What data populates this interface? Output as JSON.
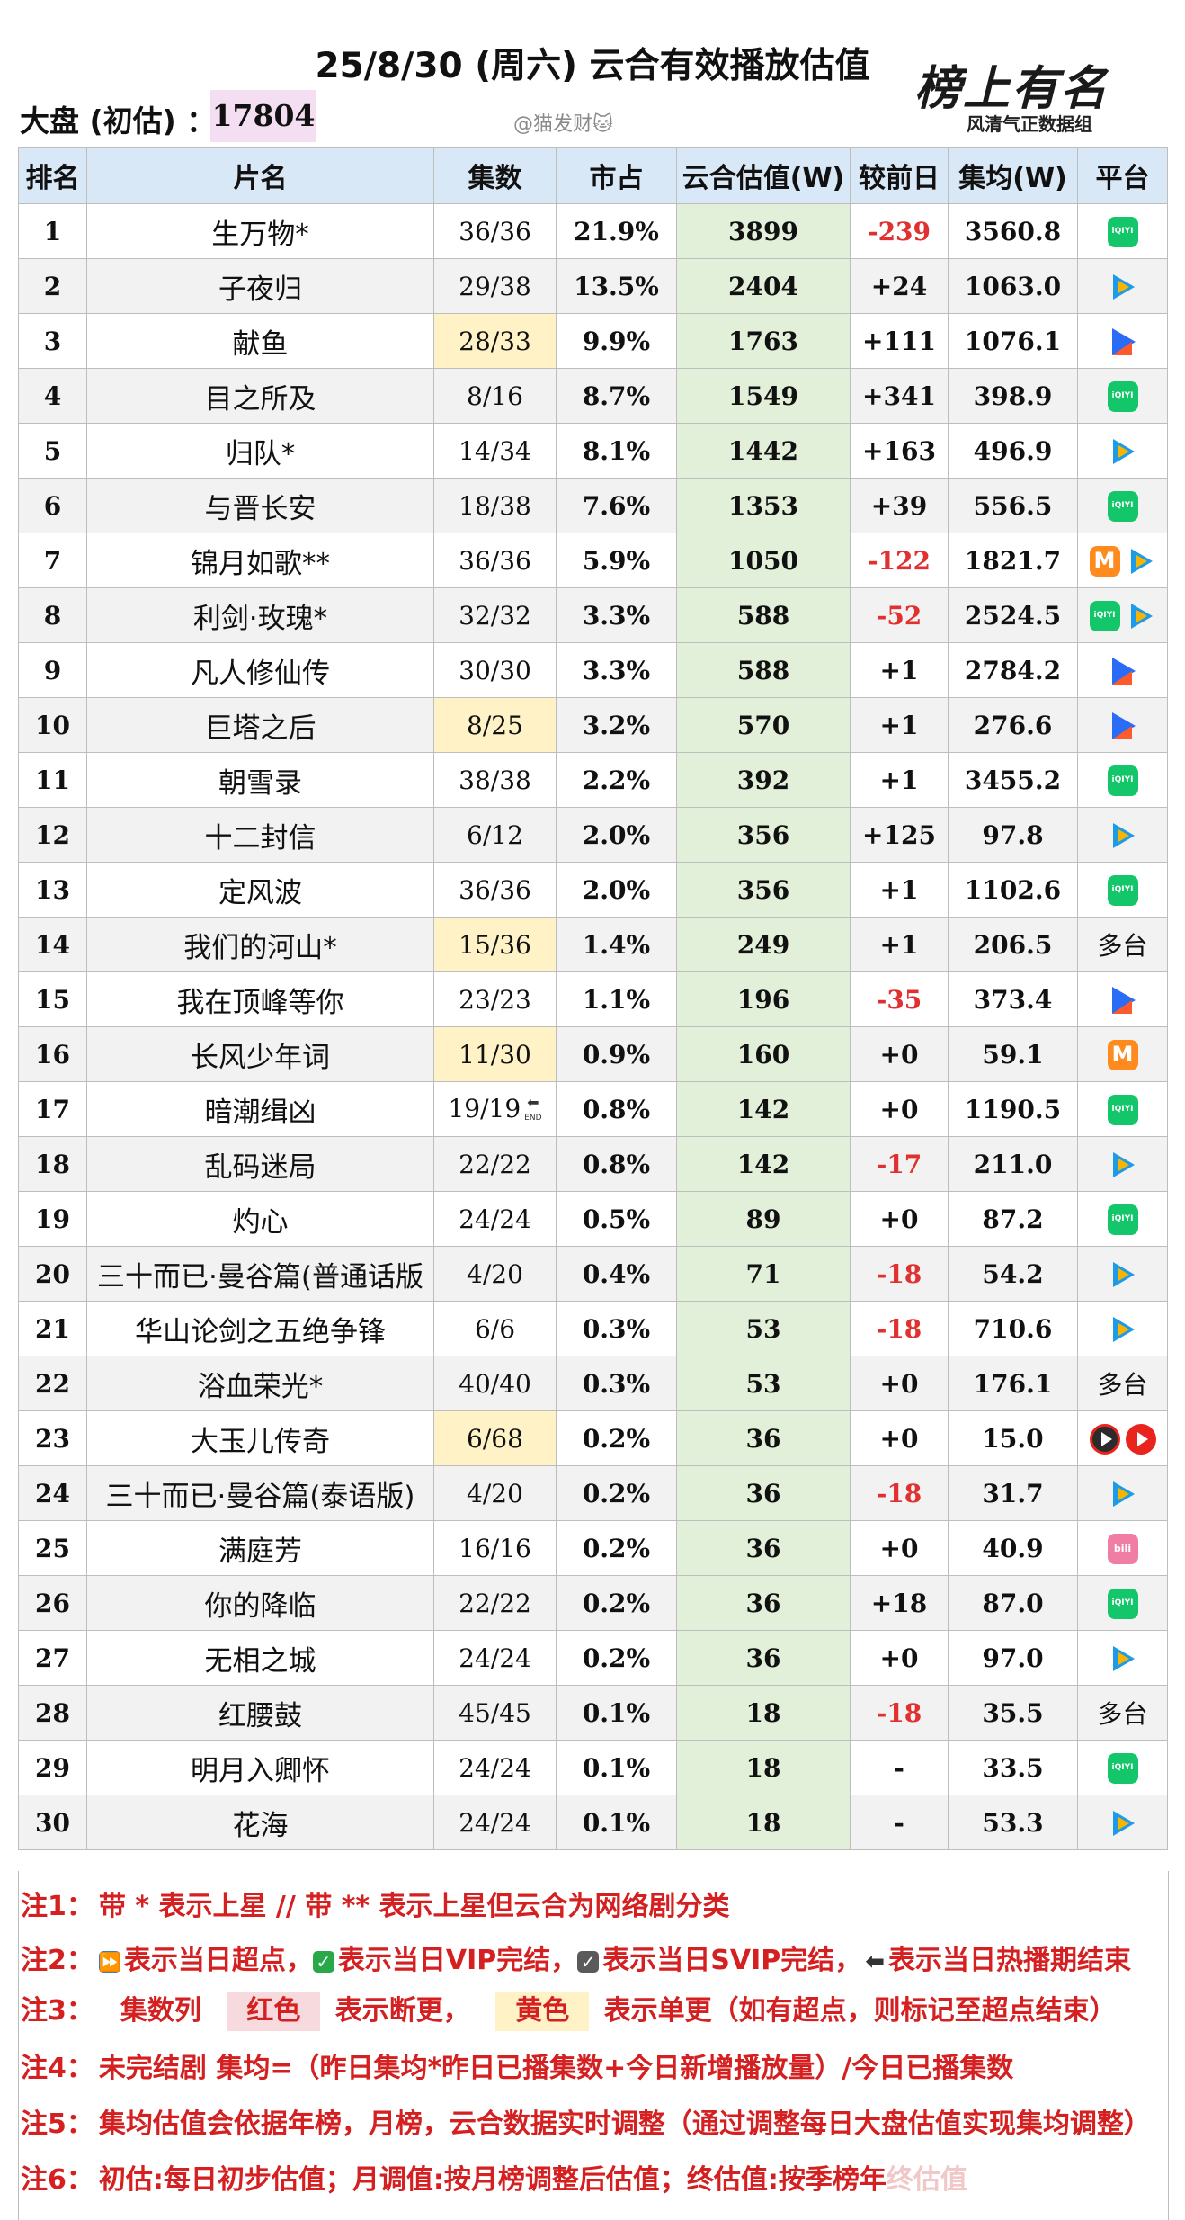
{
  "title": "25/8/30 (周六) 云合有效播放估值",
  "logo": {
    "text": "榜上有名",
    "subtitle": "风清气正数据组"
  },
  "dapan": {
    "label": "大盘 (初估) ：",
    "value": "17804"
  },
  "watermark": "@猫发财🐱",
  "headers": [
    "排名",
    "片名",
    "集数",
    "市占",
    "云合估值(W)",
    "较前日",
    "集均(W)",
    "平台"
  ],
  "rows": [
    {
      "rank": "1",
      "name": "生万物*",
      "eps": "36/36",
      "share": "21.9%",
      "value": "3899",
      "change": "-239",
      "avg": "3560.8",
      "platform": [
        "iqiyi"
      ],
      "hl": false
    },
    {
      "rank": "2",
      "name": "子夜归",
      "eps": "29/38",
      "share": "13.5%",
      "value": "2404",
      "change": "+24",
      "avg": "1063.0",
      "platform": [
        "tencent"
      ],
      "hl": false
    },
    {
      "rank": "3",
      "name": "献鱼",
      "eps": "28/33",
      "share": "9.9%",
      "value": "1763",
      "change": "+111",
      "avg": "1076.1",
      "platform": [
        "youku"
      ],
      "hl": true
    },
    {
      "rank": "4",
      "name": "目之所及",
      "eps": "8/16",
      "share": "8.7%",
      "value": "1549",
      "change": "+341",
      "avg": "398.9",
      "platform": [
        "iqiyi"
      ],
      "hl": false
    },
    {
      "rank": "5",
      "name": "归队*",
      "eps": "14/34",
      "share": "8.1%",
      "value": "1442",
      "change": "+163",
      "avg": "496.9",
      "platform": [
        "tencent"
      ],
      "hl": false
    },
    {
      "rank": "6",
      "name": "与晋长安",
      "eps": "18/38",
      "share": "7.6%",
      "value": "1353",
      "change": "+39",
      "avg": "556.5",
      "platform": [
        "iqiyi"
      ],
      "hl": false
    },
    {
      "rank": "7",
      "name": "锦月如歌**",
      "eps": "36/36",
      "share": "5.9%",
      "value": "1050",
      "change": "-122",
      "avg": "1821.7",
      "platform": [
        "mgtv",
        "tencent"
      ],
      "hl": false
    },
    {
      "rank": "8",
      "name": "利剑·玫瑰*",
      "eps": "32/32",
      "share": "3.3%",
      "value": "588",
      "change": "-52",
      "avg": "2524.5",
      "platform": [
        "iqiyi",
        "tencent"
      ],
      "hl": false
    },
    {
      "rank": "9",
      "name": "凡人修仙传",
      "eps": "30/30",
      "share": "3.3%",
      "value": "588",
      "change": "+1",
      "avg": "2784.2",
      "platform": [
        "youku"
      ],
      "hl": false
    },
    {
      "rank": "10",
      "name": "巨塔之后",
      "eps": "8/25",
      "share": "3.2%",
      "value": "570",
      "change": "+1",
      "avg": "276.6",
      "platform": [
        "youku"
      ],
      "hl": true
    },
    {
      "rank": "11",
      "name": "朝雪录",
      "eps": "38/38",
      "share": "2.2%",
      "value": "392",
      "change": "+1",
      "avg": "3455.2",
      "platform": [
        "iqiyi"
      ],
      "hl": false
    },
    {
      "rank": "12",
      "name": "十二封信",
      "eps": "6/12",
      "share": "2.0%",
      "value": "356",
      "change": "+125",
      "avg": "97.8",
      "platform": [
        "tencent"
      ],
      "hl": false
    },
    {
      "rank": "13",
      "name": "定风波",
      "eps": "36/36",
      "share": "2.0%",
      "value": "356",
      "change": "+1",
      "avg": "1102.6",
      "platform": [
        "iqiyi"
      ],
      "hl": false
    },
    {
      "rank": "14",
      "name": "我们的河山*",
      "eps": "15/36",
      "share": "1.4%",
      "value": "249",
      "change": "+1",
      "avg": "206.5",
      "platform": [
        "多台"
      ],
      "hl": true
    },
    {
      "rank": "15",
      "name": "我在顶峰等你",
      "eps": "23/23",
      "share": "1.1%",
      "value": "196",
      "change": "-35",
      "avg": "373.4",
      "platform": [
        "youku"
      ],
      "hl": false
    },
    {
      "rank": "16",
      "name": "长风少年词",
      "eps": "11/30",
      "share": "0.9%",
      "value": "160",
      "change": "+0",
      "avg": "59.1",
      "platform": [
        "mgtv"
      ],
      "hl": true
    },
    {
      "rank": "17",
      "name": "暗潮缉凶",
      "eps": "19/19",
      "share": "0.8%",
      "value": "142",
      "change": "+0",
      "avg": "1190.5",
      "platform": [
        "iqiyi"
      ],
      "hl": false,
      "end": "END"
    },
    {
      "rank": "18",
      "name": "乱码迷局",
      "eps": "22/22",
      "share": "0.8%",
      "value": "142",
      "change": "-17",
      "avg": "211.0",
      "platform": [
        "tencent"
      ],
      "hl": false
    },
    {
      "rank": "19",
      "name": "灼心",
      "eps": "24/24",
      "share": "0.5%",
      "value": "89",
      "change": "+0",
      "avg": "87.2",
      "platform": [
        "iqiyi"
      ],
      "hl": false
    },
    {
      "rank": "20",
      "name": "三十而已·曼谷篇(普通话版",
      "eps": "4/20",
      "share": "0.4%",
      "value": "71",
      "change": "-18",
      "avg": "54.2",
      "platform": [
        "tencent"
      ],
      "hl": false
    },
    {
      "rank": "21",
      "name": "华山论剑之五绝争锋",
      "eps": "6/6",
      "share": "0.3%",
      "value": "53",
      "change": "-18",
      "avg": "710.6",
      "platform": [
        "tencent"
      ],
      "hl": false
    },
    {
      "rank": "22",
      "name": "浴血荣光*",
      "eps": "40/40",
      "share": "0.3%",
      "value": "53",
      "change": "+0",
      "avg": "176.1",
      "platform": [
        "多台"
      ],
      "hl": false
    },
    {
      "rank": "23",
      "name": "大玉儿传奇",
      "eps": "6/68",
      "share": "0.2%",
      "value": "36",
      "change": "+0",
      "avg": "15.0",
      "platform": [
        "red2",
        "red"
      ],
      "hl": true
    },
    {
      "rank": "24",
      "name": "三十而已·曼谷篇(泰语版)",
      "eps": "4/20",
      "share": "0.2%",
      "value": "36",
      "change": "-18",
      "avg": "31.7",
      "platform": [
        "tencent"
      ],
      "hl": false
    },
    {
      "rank": "25",
      "name": "满庭芳",
      "eps": "16/16",
      "share": "0.2%",
      "value": "36",
      "change": "+0",
      "avg": "40.9",
      "platform": [
        "bilibili"
      ],
      "hl": false
    },
    {
      "rank": "26",
      "name": "你的降临",
      "eps": "22/22",
      "share": "0.2%",
      "value": "36",
      "change": "+18",
      "avg": "87.0",
      "platform": [
        "iqiyi"
      ],
      "hl": false
    },
    {
      "rank": "27",
      "name": "无相之城",
      "eps": "24/24",
      "share": "0.2%",
      "value": "36",
      "change": "+0",
      "avg": "97.0",
      "platform": [
        "tencent"
      ],
      "hl": false
    },
    {
      "rank": "28",
      "name": "红腰鼓",
      "eps": "45/45",
      "share": "0.1%",
      "value": "18",
      "change": "-18",
      "avg": "35.5",
      "platform": [
        "多台"
      ],
      "hl": false
    },
    {
      "rank": "29",
      "name": "明月入卿怀",
      "eps": "24/24",
      "share": "0.1%",
      "value": "18",
      "change": "-",
      "avg": "33.5",
      "platform": [
        "iqiyi"
      ],
      "hl": false
    },
    {
      "rank": "30",
      "name": "花海",
      "eps": "24/24",
      "share": "0.1%",
      "value": "18",
      "change": "-",
      "avg": "53.3",
      "platform": [
        "tencent"
      ],
      "hl": false
    }
  ],
  "notes": {
    "n1": {
      "label": "注1：",
      "text": "带 * 表示上星 // 带 ** 表示上星但云合为网络剧分类"
    },
    "n2": {
      "label": "注2：",
      "a": "表示当日超点，",
      "b": "表示当日VIP完结，",
      "c": "表示当日SVIP完结，",
      "d": "表示当日热播期结束"
    },
    "n3": {
      "label": "注3：",
      "a": "集数列",
      "red": "红色",
      "b": "表示断更，",
      "yellow": "黄色",
      "c": "表示单更（如有超点，则标记至超点结束）"
    },
    "n4": {
      "label": "注4：",
      "text": "未完结剧 集均=（昨日集均*昨日已播集数+今日新增播放量）/今日已播集数"
    },
    "n5": {
      "label": "注5：",
      "text": "集均估值会依据年榜，月榜，云合数据实时调整（通过调整每日大盘估值实现集均调整）"
    },
    "n6": {
      "label": "注6：",
      "text": "初估:每日初步估值；月调值:按月榜调整后估值；终估值:按季榜年",
      "tail": "终估值"
    }
  },
  "colors": {
    "header_bg": "#d9e8f7",
    "value_col_bg": "#e2efd9",
    "alt_row_bg": "#f2f2f2",
    "highlight_yellow": "#fff2c6",
    "dapan_bg": "#f3dff1",
    "negative": "#e03030",
    "note_red": "#d42020"
  }
}
